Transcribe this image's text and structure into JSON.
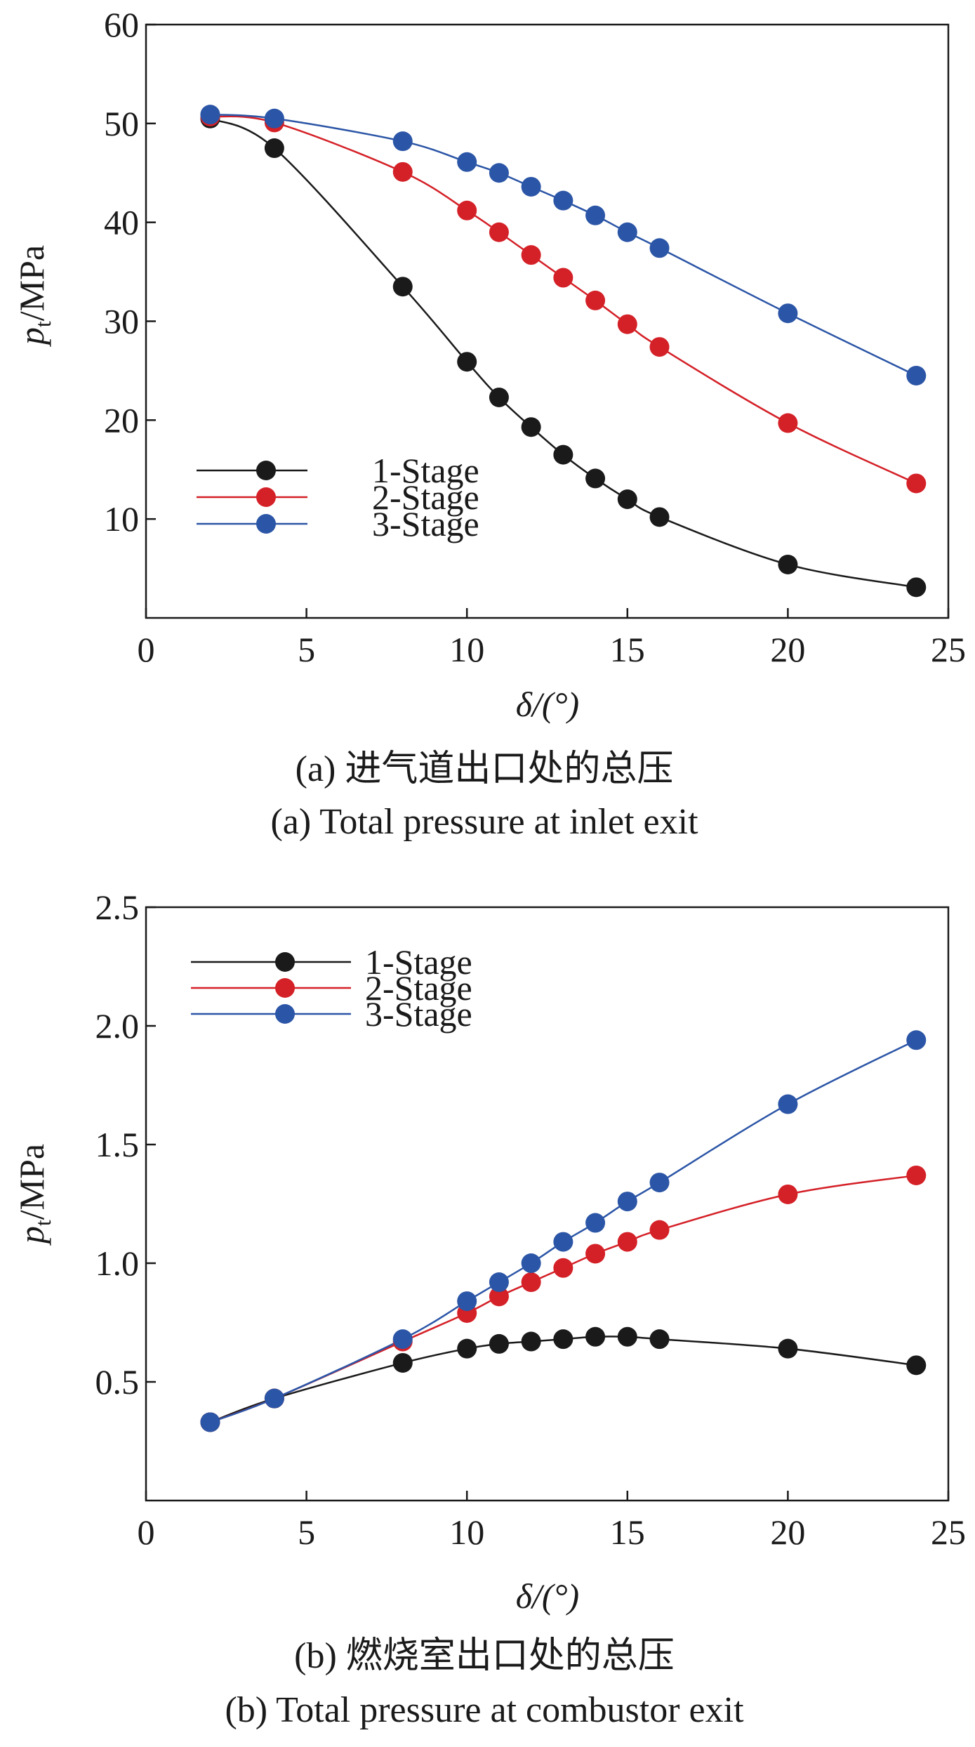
{
  "charts": [
    {
      "caption_cn": "(a) 进气道出口处的总压",
      "caption_en": "(a) Total pressure at inlet exit"
    },
    {
      "caption_cn": "(b) 燃烧室出口处的总压",
      "caption_en": "(b) Total pressure at combustor exit"
    }
  ],
  "chart_data": [
    {
      "type": "line",
      "xlabel": "δ/(°)",
      "ylabel_main": "p",
      "ylabel_sub": "t",
      "ylabel_unit": "/MPa",
      "xlim": [
        0,
        25
      ],
      "ylim": [
        0,
        60
      ],
      "xticks": [
        0,
        5,
        10,
        15,
        20,
        25
      ],
      "yticks": [
        10,
        20,
        30,
        40,
        50,
        60
      ],
      "grid": false,
      "legend_position": "bottom-left",
      "series": [
        {
          "name": "1-Stage",
          "color": "#1a1a1a",
          "x": [
            2,
            4,
            8,
            10,
            11,
            12,
            13,
            14,
            15,
            16,
            20,
            24
          ],
          "y": [
            50.5,
            47.5,
            33.5,
            25.9,
            22.3,
            19.3,
            16.5,
            14.1,
            12.0,
            10.2,
            5.4,
            3.1
          ]
        },
        {
          "name": "2-Stage",
          "color": "#d42027",
          "x": [
            2,
            4,
            8,
            10,
            11,
            12,
            13,
            14,
            15,
            16,
            20,
            24
          ],
          "y": [
            50.7,
            50.1,
            45.1,
            41.2,
            39.0,
            36.7,
            34.4,
            32.1,
            29.7,
            27.4,
            19.7,
            13.6
          ]
        },
        {
          "name": "3-Stage",
          "color": "#2b55a6",
          "x": [
            2,
            4,
            8,
            10,
            11,
            12,
            13,
            14,
            15,
            16,
            20,
            24
          ],
          "y": [
            50.9,
            50.5,
            48.2,
            46.1,
            45.0,
            43.6,
            42.2,
            40.7,
            39.0,
            37.4,
            30.8,
            24.5
          ]
        }
      ]
    },
    {
      "type": "line",
      "xlabel": "δ/(°)",
      "ylabel_main": "p",
      "ylabel_sub": "t",
      "ylabel_unit": "/MPa",
      "xlim": [
        0,
        25
      ],
      "ylim": [
        0,
        2.5
      ],
      "xticks": [
        0,
        5,
        10,
        15,
        20,
        25
      ],
      "yticks": [
        0.5,
        1.0,
        1.5,
        2.0,
        2.5
      ],
      "grid": false,
      "legend_position": "top-left",
      "series": [
        {
          "name": "1-Stage",
          "color": "#1a1a1a",
          "x": [
            2,
            4,
            8,
            10,
            11,
            12,
            13,
            14,
            15,
            16,
            20,
            24
          ],
          "y": [
            0.33,
            0.43,
            0.58,
            0.64,
            0.66,
            0.67,
            0.68,
            0.69,
            0.69,
            0.68,
            0.64,
            0.57
          ]
        },
        {
          "name": "2-Stage",
          "color": "#d42027",
          "x": [
            2,
            4,
            8,
            10,
            11,
            12,
            13,
            14,
            15,
            16,
            20,
            24
          ],
          "y": [
            0.33,
            0.43,
            0.67,
            0.79,
            0.86,
            0.92,
            0.98,
            1.04,
            1.09,
            1.14,
            1.29,
            1.37
          ]
        },
        {
          "name": "3-Stage",
          "color": "#2b55a6",
          "x": [
            2,
            4,
            8,
            10,
            11,
            12,
            13,
            14,
            15,
            16,
            20,
            24
          ],
          "y": [
            0.33,
            0.43,
            0.68,
            0.84,
            0.92,
            1.0,
            1.09,
            1.17,
            1.26,
            1.34,
            1.67,
            1.94
          ]
        }
      ]
    }
  ]
}
